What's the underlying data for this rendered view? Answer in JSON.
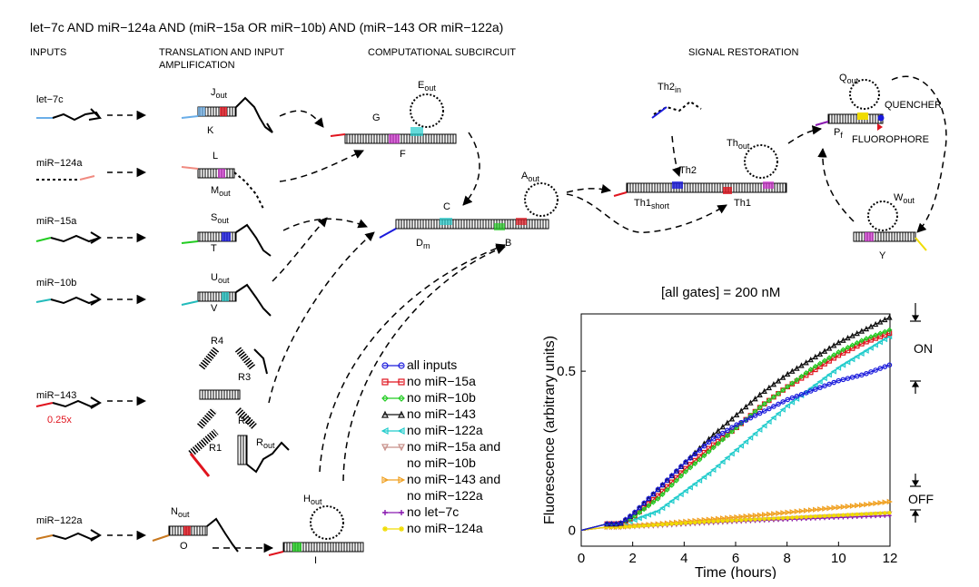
{
  "title": "let−7c AND miR−124a AND (miR−15a OR miR−10b) AND (miR−143 OR miR−122a)",
  "headers": {
    "inputs": "INPUTS",
    "translation": "TRANSLATION AND INPUT",
    "amplification": "AMPLIFICATION",
    "computational": "COMPUTATIONAL SUBCIRCUIT",
    "restoration": "SIGNAL RESTORATION"
  },
  "inputs": [
    {
      "name": "let−7c",
      "color": "#6aaee8"
    },
    {
      "name": "miR−124a",
      "color": "#f08a80"
    },
    {
      "name": "miR−15a",
      "color": "#22cc22"
    },
    {
      "name": "miR−10b",
      "color": "#22bbbb"
    },
    {
      "name": "miR−143",
      "color": "#e0141e",
      "note": "0.25x"
    },
    {
      "name": "miR−122a",
      "color": "#c8781e"
    }
  ],
  "gate_labels": {
    "J": "J",
    "out": "out",
    "K": "K",
    "L": "L",
    "M": "M",
    "S": "S",
    "T": "T",
    "U": "U",
    "V": "V",
    "R1": "R1",
    "R2": "R2",
    "R3": "R3",
    "R4": "R4",
    "R": "R",
    "N": "N",
    "O": "O",
    "H": "H",
    "I": "I",
    "G": "G",
    "E": "E",
    "F": "F",
    "C": "C",
    "D": "D",
    "m": "m",
    "A": "A",
    "B": "B",
    "Th1": "Th1",
    "short": "short",
    "Th2": "Th2",
    "in": "in",
    "Q": "Q",
    "P": "P",
    "f": "f",
    "quencher": "QUENCHER",
    "fluorophore": "FLUOROPHORE",
    "W": "W",
    "Y": "Y"
  },
  "legend": [
    {
      "label": "all inputs",
      "color": "#1a1adc",
      "marker": "circle"
    },
    {
      "label": "no miR−15a",
      "color": "#e0141e",
      "marker": "square"
    },
    {
      "label": "no miR−10b",
      "color": "#22cc22",
      "marker": "diamond"
    },
    {
      "label": "no miR−143",
      "color": "#111111",
      "marker": "triangle-up"
    },
    {
      "label": "no miR−122a",
      "color": "#22cccc",
      "marker": "triangle-left"
    },
    {
      "label": "no miR−15a and",
      "label2": "no miR−10b",
      "color": "#c8908a",
      "marker": "triangle-down"
    },
    {
      "label": "no miR−143 and",
      "label2": "no miR−122a",
      "color": "#f0a020",
      "marker": "triangle-right"
    },
    {
      "label": "no let−7c",
      "color": "#8a1ab0",
      "marker": "plus"
    },
    {
      "label": "no miR−124a",
      "color": "#f0dc00",
      "marker": "star"
    }
  ],
  "plot_title": "[all gates] = 200 nM",
  "on_label": "ON",
  "off_label": "OFF",
  "chart_data": {
    "type": "line",
    "xlabel": "Time (hours)",
    "ylabel": "Fluorescence (arbitrary units)",
    "xlim": [
      0,
      12
    ],
    "ylim": [
      -0.05,
      0.68
    ],
    "xticks": [
      "0",
      "2",
      "4",
      "6",
      "8",
      "10",
      "12"
    ],
    "yticks": [
      "0",
      "0.5"
    ],
    "x": [
      0,
      1,
      1.5,
      2,
      3,
      4,
      5,
      6,
      7,
      8,
      9,
      10,
      11,
      12
    ],
    "series": [
      {
        "name": "all inputs",
        "color": "#1a1adc",
        "values": [
          0,
          0.02,
          0.02,
          0.05,
          0.13,
          0.21,
          0.28,
          0.33,
          0.37,
          0.41,
          0.44,
          0.47,
          0.49,
          0.52
        ]
      },
      {
        "name": "no miR−15a",
        "color": "#e0141e",
        "values": [
          0,
          0.02,
          0.02,
          0.04,
          0.11,
          0.19,
          0.26,
          0.32,
          0.39,
          0.45,
          0.5,
          0.55,
          0.59,
          0.62
        ]
      },
      {
        "name": "no miR−10b",
        "color": "#22cc22",
        "values": [
          0,
          0.02,
          0.02,
          0.04,
          0.1,
          0.18,
          0.25,
          0.32,
          0.39,
          0.45,
          0.51,
          0.56,
          0.6,
          0.63
        ]
      },
      {
        "name": "no miR−143",
        "color": "#111111",
        "values": [
          0,
          0.02,
          0.02,
          0.05,
          0.13,
          0.21,
          0.29,
          0.36,
          0.43,
          0.49,
          0.54,
          0.59,
          0.63,
          0.67
        ]
      },
      {
        "name": "no miR−122a",
        "color": "#22cccc",
        "values": [
          0,
          0.02,
          0.02,
          0.03,
          0.06,
          0.12,
          0.18,
          0.25,
          0.32,
          0.39,
          0.45,
          0.51,
          0.56,
          0.61
        ]
      },
      {
        "name": "no miR−15a and no miR−10b",
        "color": "#c8908a",
        "values": [
          0,
          0.01,
          0.01,
          0.012,
          0.015,
          0.02,
          0.024,
          0.028,
          0.032,
          0.036,
          0.04,
          0.044,
          0.048,
          0.052
        ]
      },
      {
        "name": "no miR−143 and no miR−122a",
        "color": "#f0a020",
        "values": [
          0,
          0.01,
          0.01,
          0.014,
          0.02,
          0.027,
          0.034,
          0.041,
          0.048,
          0.056,
          0.064,
          0.072,
          0.08,
          0.09
        ]
      },
      {
        "name": "no let−7c",
        "color": "#8a1ab0",
        "values": [
          0,
          0.01,
          0.01,
          0.012,
          0.016,
          0.02,
          0.024,
          0.028,
          0.031,
          0.034,
          0.037,
          0.04,
          0.043,
          0.046
        ]
      },
      {
        "name": "no miR−124a",
        "color": "#f0dc00",
        "values": [
          0,
          0.01,
          0.01,
          0.012,
          0.017,
          0.022,
          0.027,
          0.031,
          0.035,
          0.039,
          0.043,
          0.047,
          0.051,
          0.055
        ]
      }
    ]
  }
}
